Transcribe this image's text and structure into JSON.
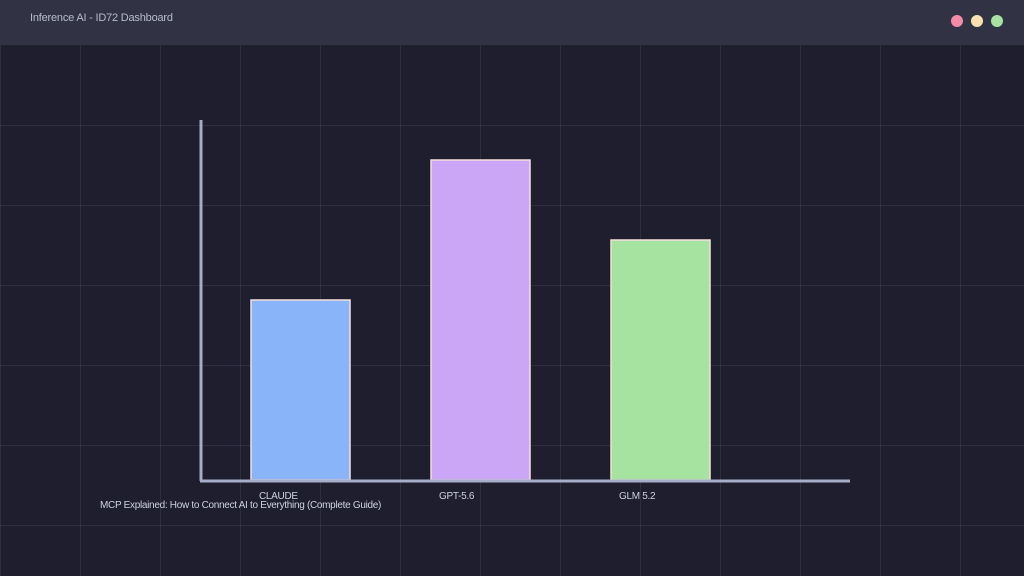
{
  "window": {
    "title": "Inference AI - ID72 Dashboard",
    "controls": [
      {
        "name": "close-control",
        "color": "#f38ba8"
      },
      {
        "name": "minimize-control",
        "color": "#f9e2af"
      },
      {
        "name": "maximize-control",
        "color": "#a6e3a1"
      }
    ]
  },
  "colors": {
    "background": "#1e1e2e",
    "titlebar": "#313244",
    "axis": "#a6adc8",
    "bar_stroke": "#f5e0dc"
  },
  "chart_data": {
    "type": "bar",
    "categories": [
      "CLAUDE",
      "GPT-5.6",
      "GLM 5.2"
    ],
    "values": [
      45,
      80,
      60
    ],
    "colors": [
      "#89b4fa",
      "#cba6f7",
      "#a6e3a1"
    ],
    "ylim": [
      0,
      90
    ],
    "grid": true,
    "title": "",
    "xlabel": "",
    "ylabel": "",
    "caption": "MCP Explained: How to Connect AI to Everything (Complete Guide)"
  }
}
